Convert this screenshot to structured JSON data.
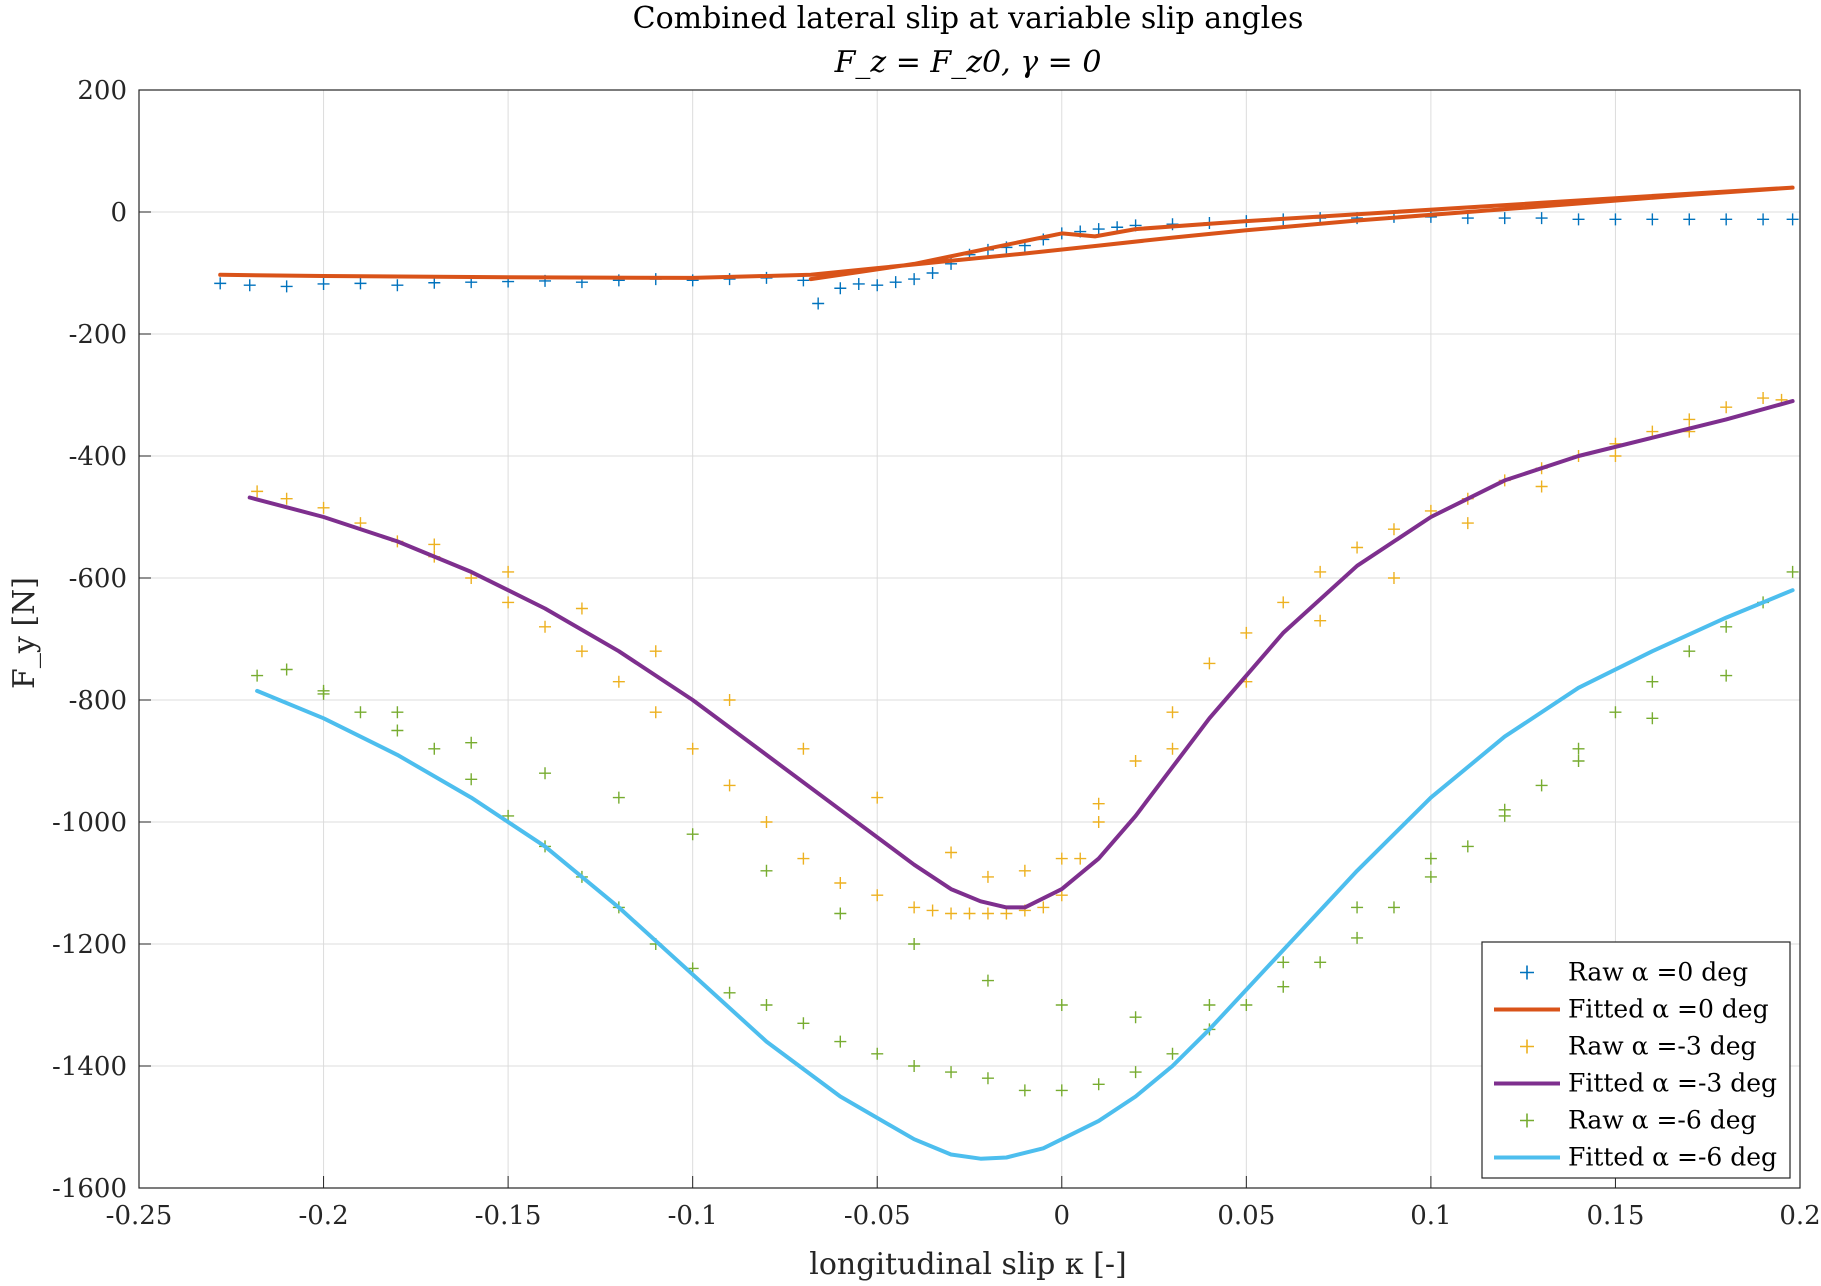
{
  "chart_data": {
    "type": "line",
    "title": "Combined lateral slip at variable slip angles",
    "subtitle": "F_z = F_z0, γ = 0",
    "xlabel": "longitudinal slip κ [-]",
    "ylabel": "F_y [N]",
    "xlim": [
      -0.25,
      0.2
    ],
    "ylim": [
      -1600,
      200
    ],
    "xticks": [
      -0.25,
      -0.2,
      -0.15,
      -0.1,
      -0.05,
      0,
      0.05,
      0.1,
      0.15,
      0.2
    ],
    "xtick_labels": [
      "-0.25",
      "-0.2",
      "-0.15",
      "-0.1",
      "-0.05",
      "0",
      "0.05",
      "0.1",
      "0.15",
      "0.2"
    ],
    "yticks": [
      200,
      0,
      -200,
      -400,
      -600,
      -800,
      -1000,
      -1200,
      -1400,
      -1600
    ],
    "ytick_labels": [
      "200",
      "0",
      "-200",
      "-400",
      "-600",
      "-800",
      "-1000",
      "-1200",
      "-1400",
      "-1600"
    ],
    "grid": true,
    "legend_position": "bottom-right",
    "series": [
      {
        "name": "Raw α =0 deg",
        "kind": "scatter",
        "marker": "+",
        "color": "#0072BD",
        "x": [
          -0.228,
          -0.22,
          -0.21,
          -0.2,
          -0.19,
          -0.18,
          -0.17,
          -0.16,
          -0.15,
          -0.14,
          -0.13,
          -0.12,
          -0.11,
          -0.1,
          -0.09,
          -0.08,
          -0.07,
          -0.066,
          -0.06,
          -0.055,
          -0.05,
          -0.045,
          -0.04,
          -0.035,
          -0.03,
          -0.025,
          -0.02,
          -0.015,
          -0.01,
          -0.005,
          0,
          0.005,
          0.01,
          0.015,
          0.02,
          0.03,
          0.04,
          0.05,
          0.06,
          0.07,
          0.08,
          0.09,
          0.1,
          0.11,
          0.12,
          0.13,
          0.14,
          0.15,
          0.16,
          0.17,
          0.18,
          0.19,
          0.198
        ],
        "y": [
          -117,
          -120,
          -122,
          -118,
          -117,
          -120,
          -116,
          -115,
          -114,
          -113,
          -115,
          -112,
          -110,
          -112,
          -110,
          -108,
          -112,
          -150,
          -125,
          -118,
          -120,
          -115,
          -110,
          -100,
          -85,
          -70,
          -62,
          -58,
          -55,
          -45,
          -35,
          -32,
          -28,
          -25,
          -22,
          -20,
          -18,
          -15,
          -12,
          -10,
          -10,
          -8,
          -8,
          -10,
          -10,
          -10,
          -12,
          -12,
          -12,
          -12,
          -12,
          -12,
          -12
        ]
      },
      {
        "name": "Fitted α =0 deg",
        "kind": "line",
        "color": "#D95319",
        "x": [
          -0.228,
          -0.2,
          -0.15,
          -0.1,
          -0.068,
          -0.05,
          -0.03,
          -0.01,
          0.01,
          0.03,
          0.05,
          0.08,
          0.11,
          0.14,
          0.17,
          0.198,
          0.17,
          0.13,
          0.09,
          0.05,
          0.02,
          0.009,
          0.0,
          -0.02,
          -0.04,
          -0.068
        ],
        "y": [
          -103,
          -105,
          -107,
          -108,
          -103,
          -92,
          -80,
          -68,
          -55,
          -42,
          -30,
          -14,
          0,
          14,
          28,
          40,
          30,
          15,
          0,
          -15,
          -28,
          -40,
          -35,
          -60,
          -85,
          -110
        ]
      },
      {
        "name": "Raw α =-3 deg",
        "kind": "scatter",
        "marker": "+",
        "color": "#EDB120",
        "x": [
          -0.218,
          -0.21,
          -0.2,
          -0.19,
          -0.18,
          -0.17,
          -0.16,
          -0.15,
          -0.14,
          -0.13,
          -0.12,
          -0.11,
          -0.1,
          -0.09,
          -0.08,
          -0.07,
          -0.06,
          -0.05,
          -0.04,
          -0.035,
          -0.03,
          -0.025,
          -0.02,
          -0.015,
          -0.01,
          -0.005,
          0.0,
          0.005,
          0.01,
          0.02,
          0.03,
          0.04,
          0.05,
          0.06,
          0.07,
          0.08,
          0.09,
          0.1,
          0.11,
          0.12,
          0.13,
          0.14,
          0.15,
          0.16,
          0.17,
          0.18,
          0.19,
          0.195,
          -0.17,
          -0.15,
          -0.13,
          -0.11,
          -0.09,
          -0.07,
          -0.05,
          -0.03,
          -0.02,
          -0.01,
          0.0,
          0.01,
          0.03,
          0.05,
          0.07,
          0.09,
          0.11,
          0.13,
          0.15,
          0.17
        ],
        "y": [
          -458,
          -470,
          -485,
          -510,
          -540,
          -565,
          -600,
          -640,
          -680,
          -720,
          -770,
          -820,
          -880,
          -940,
          -1000,
          -1060,
          -1100,
          -1120,
          -1140,
          -1145,
          -1150,
          -1150,
          -1150,
          -1150,
          -1145,
          -1140,
          -1120,
          -1060,
          -1000,
          -900,
          -820,
          -740,
          -690,
          -640,
          -590,
          -550,
          -520,
          -490,
          -470,
          -440,
          -420,
          -400,
          -380,
          -360,
          -340,
          -320,
          -305,
          -308,
          -545,
          -590,
          -650,
          -720,
          -800,
          -880,
          -960,
          -1050,
          -1090,
          -1080,
          -1060,
          -970,
          -880,
          -770,
          -670,
          -600,
          -510,
          -450,
          -400,
          -360
        ]
      },
      {
        "name": "Fitted α =-3 deg",
        "kind": "line",
        "color": "#7E2F8E",
        "x": [
          -0.22,
          -0.2,
          -0.18,
          -0.16,
          -0.14,
          -0.12,
          -0.1,
          -0.08,
          -0.06,
          -0.04,
          -0.03,
          -0.022,
          -0.015,
          -0.01,
          0.0,
          0.01,
          0.02,
          0.03,
          0.04,
          0.06,
          0.08,
          0.1,
          0.12,
          0.14,
          0.16,
          0.18,
          0.198
        ],
        "y": [
          -468,
          -500,
          -540,
          -590,
          -650,
          -720,
          -800,
          -890,
          -980,
          -1070,
          -1110,
          -1130,
          -1140,
          -1140,
          -1110,
          -1060,
          -990,
          -910,
          -830,
          -690,
          -580,
          -500,
          -440,
          -400,
          -370,
          -340,
          -310
        ]
      },
      {
        "name": "Raw α =-6 deg",
        "kind": "scatter",
        "marker": "+",
        "color": "#77AC30",
        "x": [
          -0.218,
          -0.21,
          -0.2,
          -0.19,
          -0.18,
          -0.17,
          -0.16,
          -0.15,
          -0.14,
          -0.13,
          -0.12,
          -0.11,
          -0.1,
          -0.09,
          -0.08,
          -0.07,
          -0.06,
          -0.05,
          -0.04,
          -0.03,
          -0.02,
          -0.01,
          0.0,
          0.01,
          0.02,
          0.03,
          0.04,
          0.05,
          0.06,
          0.07,
          0.08,
          0.09,
          0.1,
          0.11,
          0.12,
          0.13,
          0.14,
          0.15,
          0.16,
          0.17,
          0.18,
          0.19,
          0.198,
          -0.2,
          -0.18,
          -0.16,
          -0.14,
          -0.12,
          -0.1,
          -0.08,
          -0.06,
          -0.04,
          -0.02,
          0.0,
          0.02,
          0.04,
          0.06,
          0.08,
          0.1,
          0.12,
          0.14,
          0.16,
          0.18
        ],
        "y": [
          -760,
          -750,
          -790,
          -820,
          -850,
          -880,
          -930,
          -990,
          -1040,
          -1090,
          -1140,
          -1200,
          -1240,
          -1280,
          -1300,
          -1330,
          -1360,
          -1380,
          -1400,
          -1410,
          -1420,
          -1440,
          -1440,
          -1430,
          -1410,
          -1380,
          -1340,
          -1300,
          -1270,
          -1230,
          -1190,
          -1140,
          -1090,
          -1040,
          -990,
          -940,
          -880,
          -820,
          -770,
          -720,
          -680,
          -640,
          -590,
          -785,
          -820,
          -870,
          -920,
          -960,
          -1020,
          -1080,
          -1150,
          -1200,
          -1260,
          -1300,
          -1320,
          -1300,
          -1230,
          -1140,
          -1060,
          -980,
          -900,
          -830,
          -760
        ]
      },
      {
        "name": "Fitted α =-6 deg",
        "kind": "line",
        "color": "#4DBEEE",
        "x": [
          -0.218,
          -0.2,
          -0.18,
          -0.16,
          -0.14,
          -0.12,
          -0.1,
          -0.08,
          -0.06,
          -0.04,
          -0.03,
          -0.022,
          -0.015,
          -0.005,
          0.0,
          0.01,
          0.02,
          0.03,
          0.04,
          0.06,
          0.08,
          0.1,
          0.12,
          0.14,
          0.16,
          0.18,
          0.198
        ],
        "y": [
          -785,
          -830,
          -890,
          -960,
          -1040,
          -1140,
          -1250,
          -1360,
          -1450,
          -1520,
          -1545,
          -1552,
          -1550,
          -1535,
          -1520,
          -1490,
          -1450,
          -1400,
          -1340,
          -1210,
          -1080,
          -960,
          -860,
          -780,
          -720,
          -665,
          -620
        ]
      }
    ]
  }
}
